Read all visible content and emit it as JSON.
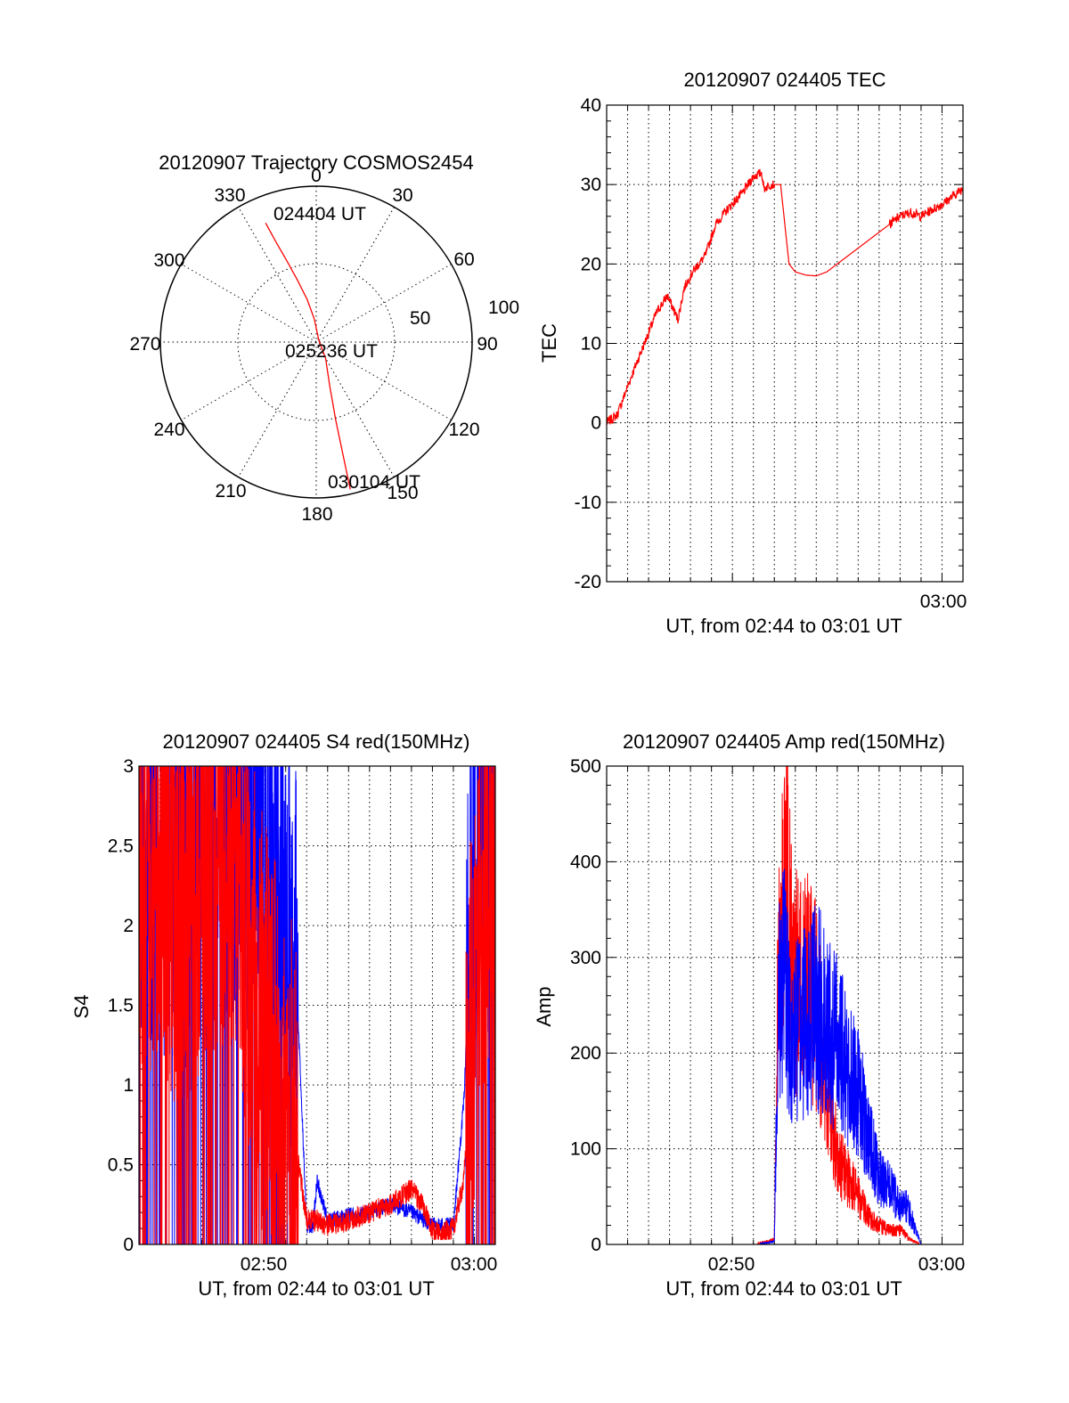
{
  "chart_data": [
    {
      "type": "polar",
      "title": "20120907 Trajectory COSMOS2454",
      "angle_ticks": [
        "0",
        "30",
        "60",
        "90",
        "120",
        "150",
        "180",
        "210",
        "240",
        "270",
        "300",
        "330"
      ],
      "radial_ticks": [
        "50",
        "100"
      ],
      "annotations": [
        "024404 UT",
        "025236 UT",
        "030104 UT"
      ],
      "trajectory": {
        "color": "#ff0000",
        "azimuth_deg": [
          337,
          338,
          340,
          343,
          348,
          355,
          60,
          150,
          163,
          166,
          167
        ],
        "zenith": [
          83,
          70,
          56,
          42,
          28,
          15,
          2,
          12,
          30,
          52,
          97
        ]
      }
    },
    {
      "type": "line",
      "title": "20120907 024405 TEC",
      "xlabel": "UT, from 02:44 to 03:01 UT",
      "ylabel": "TEC",
      "x_tick_labels": [
        "03:00"
      ],
      "y_ticks": [
        "-20",
        "-10",
        "0",
        "10",
        "20",
        "30",
        "40"
      ],
      "xlim": [
        "02:44",
        "03:01"
      ],
      "ylim": [
        -20,
        40
      ],
      "grid": true,
      "series": [
        {
          "color": "#ff0000",
          "x_min": [
            44.0,
            44.5,
            45.2,
            45.8,
            46.4,
            46.9,
            47.4,
            47.7,
            48.1,
            48.7,
            49.2,
            49.8,
            50.5,
            51.0,
            51.4,
            51.5,
            51.8,
            52.3,
            52.7,
            53.0,
            53.5,
            54.0,
            54.5,
            55.0,
            55.5,
            56.0,
            56.5,
            57.0,
            57.5,
            58.0,
            58.5,
            59.0,
            59.5,
            60.0,
            60.5,
            61.0
          ],
          "values": [
            0,
            1,
            6,
            10,
            14,
            16,
            13,
            17,
            19,
            21,
            25,
            27,
            29,
            31,
            31.5,
            29.5,
            30,
            30,
            20,
            19,
            18.6,
            18.5,
            19,
            20,
            21,
            22,
            23,
            24,
            25,
            26,
            26.5,
            26,
            26.8,
            27.5,
            28.5,
            29.5
          ]
        }
      ]
    },
    {
      "type": "line",
      "title": "20120907 024405 S4 red(150MHz)",
      "xlabel": "UT, from 02:44 to 03:01 UT",
      "ylabel": "S4",
      "x_tick_labels": [
        "02:50",
        "03:00"
      ],
      "y_ticks": [
        "0",
        "0.5",
        "1",
        "1.5",
        "2",
        "2.5",
        "3"
      ],
      "xlim": [
        "02:44",
        "03:01"
      ],
      "ylim": [
        0,
        3
      ],
      "grid": true,
      "series": [
        {
          "color": "#ff0000",
          "x_min": [
            44.0,
            45.0,
            46.0,
            47.0,
            48.0,
            48.5,
            49.0,
            49.5,
            50.0,
            50.5,
            51.0,
            51.5,
            52.0,
            52.5,
            53.0,
            54.0,
            55.0,
            56.0,
            57.0,
            57.5,
            58.0,
            58.5,
            59.0,
            59.5,
            60.0,
            60.5,
            61.0
          ],
          "values": [
            2.5,
            2.4,
            2.2,
            2.5,
            2.6,
            2.4,
            2.0,
            1.6,
            1.3,
            1.0,
            0.75,
            0.6,
            0.15,
            0.15,
            0.12,
            0.15,
            0.2,
            0.25,
            0.35,
            0.25,
            0.08,
            0.07,
            0.1,
            0.4,
            1.6,
            2.4,
            2.5
          ]
        },
        {
          "color": "#0000ff",
          "x_min": [
            44.0,
            45.0,
            46.0,
            47.0,
            48.0,
            48.5,
            49.0,
            49.5,
            50.0,
            50.5,
            51.0,
            51.5,
            52.0,
            52.3,
            52.5,
            53.0,
            54.0,
            55.0,
            56.0,
            57.0,
            58.0,
            58.5,
            59.0,
            59.5,
            60.0,
            60.5,
            61.0
          ],
          "values": [
            2.6,
            2.5,
            2.4,
            2.7,
            2.8,
            2.8,
            2.6,
            2.9,
            2.8,
            2.7,
            2.3,
            1.7,
            0.12,
            0.12,
            0.4,
            0.15,
            0.18,
            0.2,
            0.25,
            0.2,
            0.12,
            0.12,
            0.12,
            0.9,
            2.5,
            2.7,
            2.6
          ]
        }
      ]
    },
    {
      "type": "line",
      "title": "20120907 024405 Amp red(150MHz)",
      "xlabel": "UT, from 02:44 to 03:01 UT",
      "ylabel": "Amp",
      "x_tick_labels": [
        "02:50",
        "03:00"
      ],
      "y_ticks": [
        "0",
        "100",
        "200",
        "300",
        "400",
        "500"
      ],
      "xlim": [
        "02:44",
        "03:01"
      ],
      "ylim": [
        0,
        500
      ],
      "grid": true,
      "series": [
        {
          "color": "#ff0000",
          "x_min": [
            44.0,
            51.0,
            52.0,
            52.2,
            52.4,
            52.6,
            52.8,
            53.0,
            53.3,
            53.6,
            54.0,
            54.5,
            55.0,
            55.5,
            56.0,
            56.5,
            57.0,
            57.5,
            58.0,
            58.5,
            59.0,
            61.0
          ],
          "values": [
            0,
            0,
            5,
            300,
            330,
            380,
            290,
            270,
            280,
            270,
            250,
            170,
            90,
            70,
            50,
            30,
            20,
            15,
            15,
            5,
            0,
            0
          ]
        },
        {
          "color": "#0000ff",
          "x_min": [
            44.0,
            51.0,
            52.0,
            52.2,
            52.5,
            52.8,
            53.0,
            53.5,
            54.0,
            54.5,
            55.0,
            55.5,
            56.0,
            56.5,
            57.0,
            57.5,
            58.0,
            58.3,
            58.5,
            59.0,
            61.0
          ],
          "values": [
            0,
            0,
            3,
            250,
            280,
            200,
            220,
            240,
            250,
            230,
            210,
            180,
            160,
            110,
            70,
            60,
            40,
            40,
            30,
            0,
            0
          ]
        }
      ]
    }
  ]
}
